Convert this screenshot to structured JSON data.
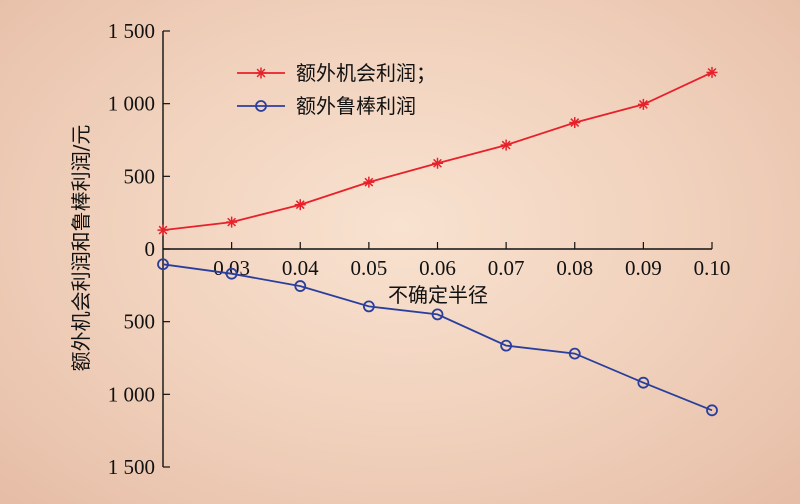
{
  "chart_data": {
    "type": "line",
    "xlabel": "不确定半径",
    "ylabel": "额外机会利润和鲁棒利润/元",
    "x": [
      0.02,
      0.03,
      0.04,
      0.05,
      0.06,
      0.07,
      0.08,
      0.09,
      0.1
    ],
    "x_tick_values": [
      0.03,
      0.04,
      0.05,
      0.06,
      0.07,
      0.08,
      0.09,
      0.1
    ],
    "x_tick_labels": [
      "0.03",
      "0.04",
      "0.05",
      "0.06",
      "0.07",
      "0.08",
      "0.09",
      "0.10"
    ],
    "y_tick_values": [
      1500,
      1000,
      500,
      0,
      -500,
      -1000,
      -1500
    ],
    "y_tick_labels": [
      "1 500",
      "1 000",
      "500",
      "0",
      "500",
      "1 000",
      "1 500"
    ],
    "ylim": [
      -1500,
      1500
    ],
    "grid": false,
    "legend_position": "top-center",
    "series": [
      {
        "name": "额外机会利润；",
        "color": "#e8202a",
        "marker": "asterisk",
        "values": [
          130,
          185,
          305,
          460,
          590,
          715,
          870,
          995,
          1215
        ]
      },
      {
        "name": "额外鲁棒利润",
        "color": "#2a3f9d",
        "marker": "circle",
        "values": [
          -105,
          -170,
          -255,
          -395,
          -450,
          -665,
          -720,
          -920,
          -1110
        ]
      }
    ]
  }
}
